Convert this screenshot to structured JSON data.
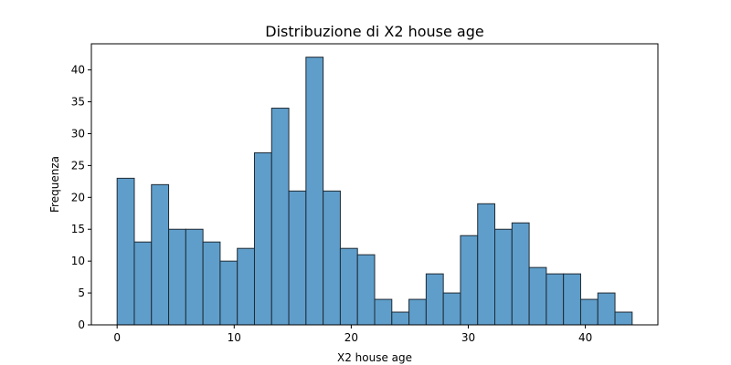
{
  "chart_data": {
    "type": "bar",
    "title": "Distribuzione di X2 house age",
    "xlabel": "X2 house age",
    "ylabel": "Frequenza",
    "bin_start": 0,
    "bin_width": 1.4667,
    "values": [
      23,
      13,
      22,
      15,
      15,
      13,
      10,
      12,
      27,
      34,
      21,
      42,
      21,
      12,
      11,
      4,
      2,
      4,
      8,
      5,
      14,
      19,
      15,
      16,
      9,
      8,
      8,
      4,
      5,
      2
    ],
    "xlim": [
      -2.2,
      46.2
    ],
    "ylim": [
      0,
      44.1
    ],
    "xticks": [
      0,
      10,
      20,
      30,
      40
    ],
    "yticks": [
      0,
      5,
      10,
      15,
      20,
      25,
      30,
      35,
      40
    ],
    "bar_color": "#5f9ecb",
    "edge_color": "#1f2a33",
    "grid": false
  }
}
